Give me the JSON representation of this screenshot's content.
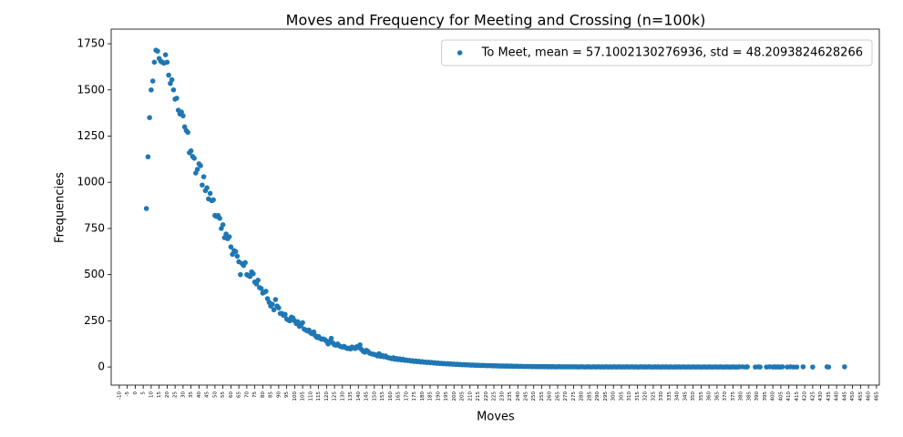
{
  "chart_data": {
    "type": "scatter",
    "title": "Moves and Frequency for Meeting and Crossing (n=100k)",
    "x_label": "Moves",
    "y_label": "Frequencies",
    "legend": "upper right",
    "xlim": [
      -15.1,
      466.8
    ],
    "ylim": [
      -98,
      1829
    ],
    "xticks": [
      -10,
      -5,
      0,
      5,
      10,
      15,
      20,
      25,
      30,
      35,
      40,
      45,
      50,
      55,
      60,
      65,
      70,
      75,
      80,
      85,
      90,
      95,
      100,
      105,
      110,
      115,
      120,
      125,
      130,
      135,
      140,
      145,
      150,
      155,
      160,
      165,
      170,
      175,
      180,
      185,
      190,
      195,
      200,
      205,
      210,
      215,
      220,
      225,
      230,
      235,
      240,
      245,
      250,
      255,
      260,
      265,
      270,
      275,
      280,
      285,
      290,
      295,
      300,
      305,
      310,
      315,
      320,
      325,
      330,
      335,
      340,
      345,
      350,
      355,
      360,
      365,
      370,
      375,
      380,
      385,
      390,
      395,
      400,
      405,
      410,
      415,
      420,
      425,
      430,
      435,
      440,
      445,
      450,
      455,
      460,
      465
    ],
    "yticks": [
      0,
      250,
      500,
      750,
      1000,
      1250,
      1500,
      1750
    ],
    "series": [
      {
        "name": "To Meet, mean = 57.1002130276936, std = 48.2093824628266",
        "color": "#1f77b4",
        "x": [
          7,
          8,
          9,
          10,
          11,
          12,
          13,
          14,
          15,
          16,
          17,
          18,
          19,
          20,
          21,
          22,
          23,
          24,
          25,
          26,
          27,
          28,
          29,
          30,
          31,
          32,
          33,
          34,
          35,
          36,
          37,
          38,
          39,
          40,
          41,
          42,
          43,
          44,
          45,
          46,
          47,
          48,
          49,
          50,
          51,
          52,
          53,
          54,
          55,
          56,
          57,
          58,
          59,
          60,
          61,
          62,
          63,
          64,
          65,
          66,
          67,
          68,
          69,
          70,
          71,
          72,
          73,
          74,
          75,
          76,
          77,
          78,
          79,
          80,
          81,
          82,
          83,
          84,
          85,
          86,
          87,
          88,
          89,
          90,
          91,
          92,
          93,
          94,
          95,
          96,
          97,
          98,
          99,
          100,
          101,
          102,
          103,
          104,
          105,
          106,
          107,
          108,
          109,
          110,
          111,
          112,
          113,
          114,
          115,
          116,
          117,
          118,
          119,
          120,
          121,
          122,
          123,
          124,
          125,
          126,
          127,
          128,
          129,
          130,
          131,
          132,
          133,
          134,
          135,
          136,
          137,
          138,
          139,
          140,
          141,
          142,
          143,
          144,
          145,
          146,
          147,
          148,
          149,
          150,
          151,
          152,
          153,
          154,
          155,
          156,
          157,
          158,
          159,
          160,
          161,
          162,
          163,
          164,
          165,
          166,
          167,
          168,
          169,
          170,
          171,
          172,
          173,
          174,
          175,
          176,
          177,
          178,
          179,
          180,
          181,
          182,
          183,
          184,
          185,
          186,
          187,
          188,
          189,
          190,
          191,
          192,
          193,
          194,
          195,
          196,
          197,
          198,
          199,
          200,
          201,
          202,
          203,
          204,
          205,
          206,
          207,
          208,
          209,
          210,
          211,
          212,
          213,
          214,
          215,
          216,
          217,
          218,
          219,
          220,
          221,
          222,
          223,
          224,
          225,
          226,
          227,
          228,
          229,
          230,
          231,
          232,
          233,
          234,
          235,
          236,
          237,
          238,
          239,
          240,
          241,
          242,
          243,
          244,
          245,
          246,
          247,
          248,
          249,
          250,
          251,
          252,
          253,
          254,
          255,
          256,
          257,
          258,
          259,
          260,
          261,
          262,
          263,
          264,
          265,
          266,
          267,
          268,
          269,
          270,
          271,
          272,
          273,
          274,
          275,
          276,
          277,
          278,
          279,
          280,
          281,
          282,
          283,
          284,
          285,
          286,
          287,
          288,
          289,
          290,
          291,
          292,
          293,
          294,
          295,
          296,
          297,
          298,
          299,
          300,
          301,
          302,
          303,
          304,
          305,
          306,
          307,
          308,
          309,
          310,
          311,
          312,
          313,
          314,
          315,
          316,
          317,
          318,
          319,
          320,
          321,
          322,
          323,
          324,
          325,
          326,
          327,
          328,
          329,
          330,
          331,
          332,
          333,
          334,
          335,
          336,
          337,
          338,
          339,
          340,
          341,
          342,
          343,
          344,
          345,
          346,
          347,
          348,
          349,
          350,
          351,
          352,
          353,
          354,
          355,
          356,
          357,
          358,
          359,
          360,
          361,
          362,
          363,
          364,
          365,
          366,
          367,
          368,
          369,
          370,
          371,
          372,
          373,
          374,
          375,
          376,
          377,
          378,
          379,
          381,
          383,
          384,
          389,
          391,
          392,
          396,
          398,
          400,
          401,
          402,
          403,
          404,
          405,
          406,
          409,
          411,
          413,
          415,
          419,
          425,
          434,
          435,
          445
        ],
        "values": [
          858,
          1138,
          1350,
          1500,
          1548,
          1650,
          1715,
          1710,
          1670,
          1655,
          1650,
          1645,
          1690,
          1650,
          1580,
          1535,
          1555,
          1500,
          1450,
          1455,
          1390,
          1370,
          1380,
          1360,
          1300,
          1280,
          1270,
          1160,
          1170,
          1140,
          1130,
          1050,
          1070,
          1100,
          1090,
          985,
          1030,
          955,
          970,
          910,
          940,
          900,
          905,
          820,
          815,
          820,
          805,
          750,
          770,
          700,
          720,
          695,
          705,
          650,
          610,
          630,
          625,
          600,
          570,
          500,
          560,
          550,
          565,
          500,
          495,
          490,
          515,
          505,
          460,
          450,
          470,
          430,
          425,
          400,
          405,
          410,
          370,
          350,
          330,
          340,
          310,
          365,
          330,
          320,
          290,
          290,
          280,
          285,
          260,
          255,
          250,
          270,
          265,
          250,
          235,
          245,
          220,
          225,
          240,
          205,
          200,
          195,
          200,
          185,
          180,
          190,
          170,
          160,
          165,
          155,
          150,
          152,
          148,
          140,
          125,
          138,
          155,
          130,
          120,
          118,
          125,
          115,
          110,
          108,
          112,
          105,
          100,
          102,
          98,
          108,
          104,
          100,
          110,
          105,
          120,
          95,
          85,
          80,
          90,
          85,
          75,
          72,
          70,
          68,
          65,
          60,
          72,
          58,
          62,
          55,
          60,
          52,
          50,
          48,
          45,
          50,
          42,
          46,
          40,
          44,
          38,
          42,
          36,
          38,
          35,
          36,
          32,
          34,
          30,
          33,
          29,
          31,
          27,
          29,
          26,
          27,
          24,
          26,
          23,
          25,
          22,
          23,
          20,
          22,
          19,
          20,
          18,
          19,
          17,
          18,
          16,
          17,
          15,
          16,
          14,
          15,
          13,
          14,
          12,
          13,
          12,
          12,
          11,
          11,
          10,
          11,
          9,
          10,
          9,
          9,
          8,
          9,
          8,
          8,
          7,
          8,
          7,
          7,
          6,
          7,
          6,
          6,
          5,
          6,
          5,
          5,
          5,
          5,
          4,
          5,
          4,
          4,
          4,
          4,
          3,
          4,
          3,
          3,
          3,
          3,
          3,
          3,
          2,
          3,
          2,
          2,
          2,
          2,
          2,
          2,
          2,
          2,
          1,
          2,
          1,
          2,
          1,
          1,
          1,
          2,
          1,
          1,
          1,
          1,
          1,
          1,
          1,
          1,
          1,
          1,
          1,
          0,
          1,
          1,
          1,
          0,
          1,
          1,
          1,
          0,
          1,
          1,
          0,
          1,
          1,
          0,
          1,
          0,
          1,
          1,
          0,
          1,
          0,
          1,
          1,
          0,
          1,
          1,
          0,
          1,
          0,
          1,
          1,
          0,
          1,
          1,
          0,
          1,
          0,
          0,
          1,
          1,
          0,
          1,
          0,
          1,
          1,
          0,
          0,
          1,
          0,
          1,
          0,
          0,
          1,
          0,
          1,
          0,
          0,
          1,
          0,
          0,
          1,
          0,
          1,
          0,
          0,
          1,
          0,
          0,
          1,
          0,
          0,
          1,
          0,
          0,
          1,
          0,
          0,
          0,
          1,
          0,
          0,
          1,
          0,
          0,
          0,
          1,
          0,
          0,
          1,
          0,
          0,
          0,
          1,
          0,
          0,
          0,
          1,
          0,
          0,
          0,
          1,
          1,
          0,
          1,
          0,
          1,
          0,
          0,
          1,
          0,
          1,
          0,
          1,
          0,
          0,
          1,
          0,
          1,
          0,
          0,
          1,
          0,
          1,
          0,
          1
        ]
      }
    ]
  }
}
